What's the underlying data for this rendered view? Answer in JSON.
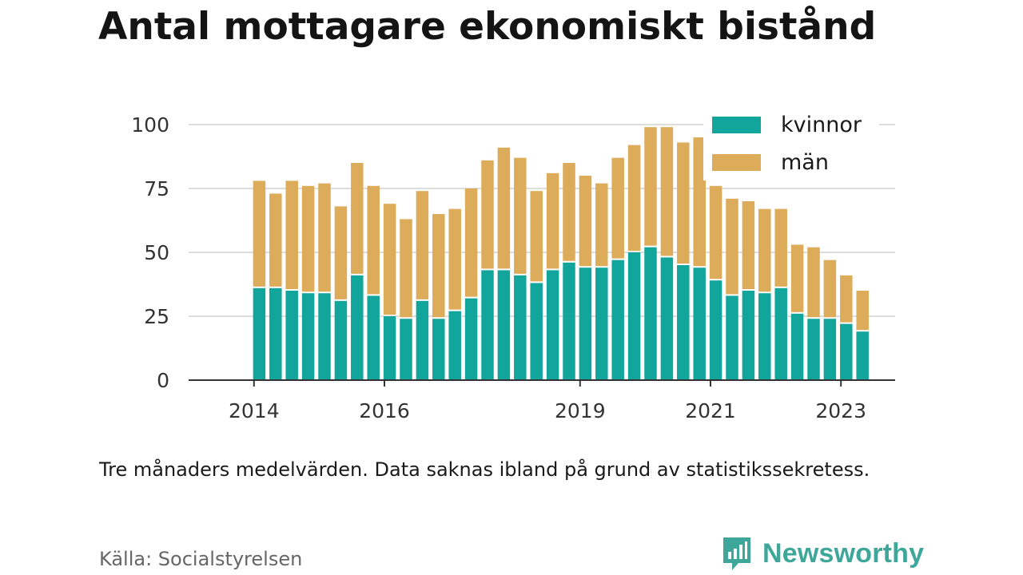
{
  "title": "Antal mottagare ekonomiskt bistånd",
  "note": "Tre månaders medelvärden. Data saknas ibland på grund av statistikssekretess.",
  "source": "Källa: Socialstyrelsen",
  "brand": {
    "name": "Newsworthy",
    "icon": "bar-chart-logo-icon"
  },
  "colors": {
    "kvinnor": "#12a59b",
    "man": "#dcac5a",
    "grid": "#dddddd",
    "axis": "#333333",
    "brand": "#3ea79a"
  },
  "chart_data": {
    "type": "bar",
    "stacked": true,
    "categories": [
      "2014-08",
      "2014-11",
      "2015-02",
      "2015-05",
      "2015-08",
      "2015-11",
      "2016-02",
      "2016-05",
      "2016-08",
      "2016-11",
      "2017-02",
      "2017-05",
      "2017-08",
      "2017-11",
      "2018-02",
      "2018-05",
      "2018-08",
      "2018-11",
      "2019-02",
      "2019-05",
      "2019-08",
      "2019-11",
      "2020-02",
      "2020-05",
      "2020-08",
      "2020-11",
      "2021-02",
      "2021-05",
      "2021-08",
      "2021-11",
      "2022-02",
      "2022-05",
      "2022-08",
      "2022-11",
      "2023-02",
      "2023-05",
      "2023-08",
      "2023-11"
    ],
    "series": [
      {
        "name": "kvinnor",
        "values": [
          36,
          36,
          35,
          34,
          34,
          31,
          41,
          33,
          25,
          24,
          31,
          24,
          27,
          32,
          43,
          43,
          41,
          38,
          43,
          46,
          44,
          44,
          47,
          50,
          52,
          48,
          45,
          44,
          39,
          33,
          35,
          34,
          36,
          26,
          24,
          24,
          22,
          19
        ]
      },
      {
        "name": "män",
        "values": [
          42,
          37,
          43,
          42,
          43,
          37,
          44,
          43,
          44,
          39,
          43,
          41,
          40,
          43,
          43,
          48,
          46,
          36,
          38,
          39,
          36,
          33,
          40,
          42,
          47,
          51,
          48,
          51,
          37,
          38,
          35,
          33,
          31,
          27,
          28,
          23,
          19,
          16
        ]
      }
    ],
    "xticks": [
      "2014",
      "2016",
      "2019",
      "2021",
      "2023"
    ],
    "xtick_positions": [
      "2014-01",
      "2016-01",
      "2019-01",
      "2021-01",
      "2023-01"
    ],
    "ylim": [
      0,
      100
    ],
    "yticks": [
      0,
      25,
      50,
      75,
      100
    ],
    "grid": true,
    "legend": {
      "position": "top-right",
      "entries": [
        "kvinnor",
        "män"
      ]
    },
    "xlabel": "",
    "ylabel": ""
  }
}
